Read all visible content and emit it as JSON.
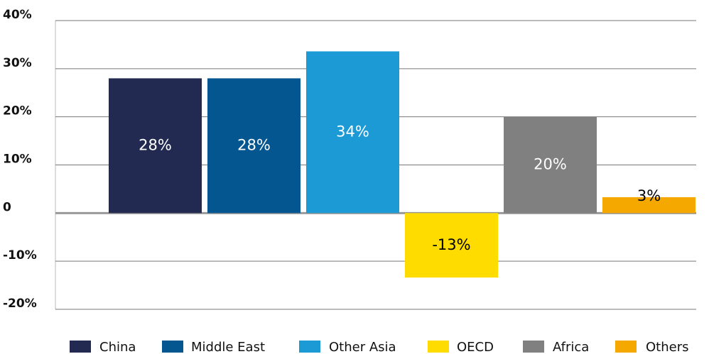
{
  "chart_data": {
    "type": "bar",
    "series": [
      {
        "name": "China",
        "color": "#232a52",
        "label_color": "#ffffff",
        "values": [
          28
        ],
        "value_labels": [
          "28%"
        ]
      },
      {
        "name": "Middle East",
        "color": "#03568f",
        "label_color": "#ffffff",
        "values": [
          28
        ],
        "value_labels": [
          "28%"
        ]
      },
      {
        "name": "Other Asia",
        "color": "#1b9ad6",
        "label_color": "#ffffff",
        "values": [
          33.6
        ],
        "value_labels": [
          "34%"
        ]
      },
      {
        "name": "OECD",
        "color": "#ffdc00",
        "label_color": "#000000",
        "values": [
          -13.4
        ],
        "value_labels": [
          "-13%"
        ]
      },
      {
        "name": "Africa",
        "color": "#808080",
        "label_color": "#ffffff",
        "values": [
          20
        ],
        "value_labels": [
          "20%"
        ]
      },
      {
        "name": "Others",
        "color": "#f5a800",
        "label_color": "#000000",
        "values": [
          3.3
        ],
        "value_labels": [
          "3%"
        ]
      }
    ],
    "ylim": [
      -20,
      40
    ],
    "yticks": [
      {
        "value": -20,
        "label": "-20%"
      },
      {
        "value": -10,
        "label": "-10%"
      },
      0,
      {
        "value": 10,
        "label": "10%"
      },
      {
        "value": 20,
        "label": "20%"
      },
      {
        "value": 30,
        "label": "30%"
      },
      {
        "value": 40,
        "label": "40%"
      }
    ],
    "grid": true,
    "legend": "bottom"
  }
}
